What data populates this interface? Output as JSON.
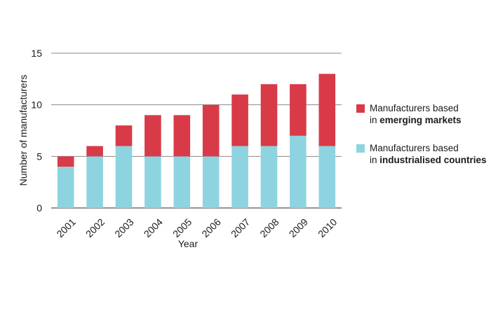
{
  "chart_data": {
    "type": "bar",
    "stacked": true,
    "categories": [
      "2001",
      "2002",
      "2003",
      "2004",
      "2005",
      "2006",
      "2007",
      "2008",
      "2009",
      "2010"
    ],
    "series": [
      {
        "name": "Manufacturers based in industrialised countries",
        "label_line1": "Manufacturers based",
        "label_line2_prefix": "in ",
        "label_line2_bold": "industrialised countries",
        "color": "#8ed4e0",
        "values": [
          4,
          5,
          6,
          5,
          5,
          5,
          6,
          6,
          7,
          6
        ]
      },
      {
        "name": "Manufacturers based in emerging markets",
        "label_line1": "Manufacturers based",
        "label_line2_prefix": "in ",
        "label_line2_bold": "emerging markets",
        "color": "#d93a48",
        "values": [
          1,
          1,
          2,
          4,
          4,
          5,
          5,
          6,
          5,
          7
        ]
      }
    ],
    "xlabel": "Year",
    "ylabel": "Number of manufacturers",
    "ylim": [
      0,
      15
    ],
    "yticks": [
      0,
      5,
      10,
      15
    ],
    "grid": true,
    "legend_position": "right"
  }
}
